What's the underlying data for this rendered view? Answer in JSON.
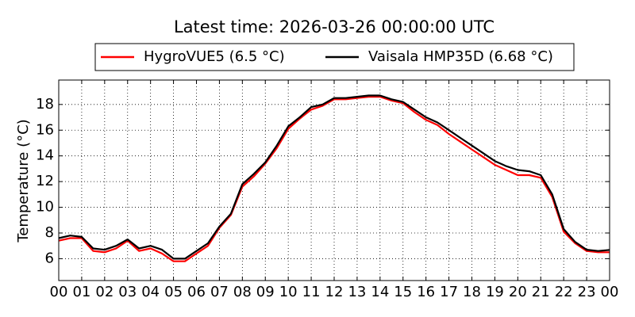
{
  "chart_data": {
    "type": "line",
    "title": "Latest time: 2026-03-26 00:00:00 UTC",
    "y_label": "Temperature (°C)",
    "x": [
      0,
      0.5,
      1,
      1.5,
      2,
      2.5,
      3,
      3.5,
      4,
      4.5,
      5,
      5.5,
      6,
      6.5,
      7,
      7.5,
      8,
      8.5,
      9,
      9.5,
      10,
      10.5,
      11,
      11.5,
      12,
      12.5,
      13,
      13.5,
      14,
      14.5,
      15,
      15.5,
      16,
      16.5,
      17,
      17.5,
      18,
      18.5,
      19,
      19.5,
      20,
      20.5,
      21,
      21.5,
      22,
      22.5,
      23,
      23.5,
      24
    ],
    "series": [
      {
        "name": "HygroVUE5 (6.5 °C)",
        "color": "#ff0000",
        "values": [
          7.4,
          7.6,
          7.6,
          6.6,
          6.5,
          6.8,
          7.4,
          6.6,
          6.8,
          6.4,
          5.8,
          5.8,
          6.4,
          7.0,
          8.4,
          9.4,
          11.6,
          12.4,
          13.4,
          14.6,
          16.1,
          16.9,
          17.6,
          17.9,
          18.4,
          18.4,
          18.5,
          18.6,
          18.6,
          18.3,
          18.1,
          17.4,
          16.8,
          16.4,
          15.7,
          15.1,
          14.5,
          13.9,
          13.3,
          12.9,
          12.5,
          12.5,
          12.3,
          10.8,
          8.1,
          7.2,
          6.6,
          6.5,
          6.5
        ]
      },
      {
        "name": "Vaisala HMP35D (6.68 °C)",
        "color": "#000000",
        "values": [
          7.6,
          7.8,
          7.7,
          6.8,
          6.7,
          7.0,
          7.5,
          6.8,
          7.0,
          6.7,
          6.0,
          6.0,
          6.6,
          7.2,
          8.5,
          9.5,
          11.8,
          12.6,
          13.5,
          14.8,
          16.3,
          17.0,
          17.8,
          18.0,
          18.5,
          18.5,
          18.6,
          18.7,
          18.7,
          18.4,
          18.2,
          17.6,
          17.0,
          16.6,
          16.0,
          15.4,
          14.8,
          14.2,
          13.6,
          13.2,
          12.9,
          12.8,
          12.5,
          11.0,
          8.3,
          7.3,
          6.7,
          6.6,
          6.68
        ]
      }
    ],
    "xlim": [
      0,
      24
    ],
    "xticks": [
      {
        "value": 0,
        "label": "00"
      },
      {
        "value": 1,
        "label": "01"
      },
      {
        "value": 2,
        "label": "02"
      },
      {
        "value": 3,
        "label": "03"
      },
      {
        "value": 4,
        "label": "04"
      },
      {
        "value": 5,
        "label": "05"
      },
      {
        "value": 6,
        "label": "06"
      },
      {
        "value": 7,
        "label": "07"
      },
      {
        "value": 8,
        "label": "08"
      },
      {
        "value": 9,
        "label": "09"
      },
      {
        "value": 10,
        "label": "10"
      },
      {
        "value": 11,
        "label": "11"
      },
      {
        "value": 12,
        "label": "12"
      },
      {
        "value": 13,
        "label": "13"
      },
      {
        "value": 14,
        "label": "14"
      },
      {
        "value": 15,
        "label": "15"
      },
      {
        "value": 16,
        "label": "16"
      },
      {
        "value": 17,
        "label": "17"
      },
      {
        "value": 18,
        "label": "18"
      },
      {
        "value": 19,
        "label": "19"
      },
      {
        "value": 20,
        "label": "20"
      },
      {
        "value": 21,
        "label": "21"
      },
      {
        "value": 22,
        "label": "22"
      },
      {
        "value": 23,
        "label": "23"
      },
      {
        "value": 24,
        "label": "00"
      }
    ],
    "ylim": [
      4.3,
      19.9
    ],
    "yticks": [
      6,
      8,
      10,
      12,
      14,
      16,
      18
    ],
    "grid": true,
    "legend": "top"
  }
}
